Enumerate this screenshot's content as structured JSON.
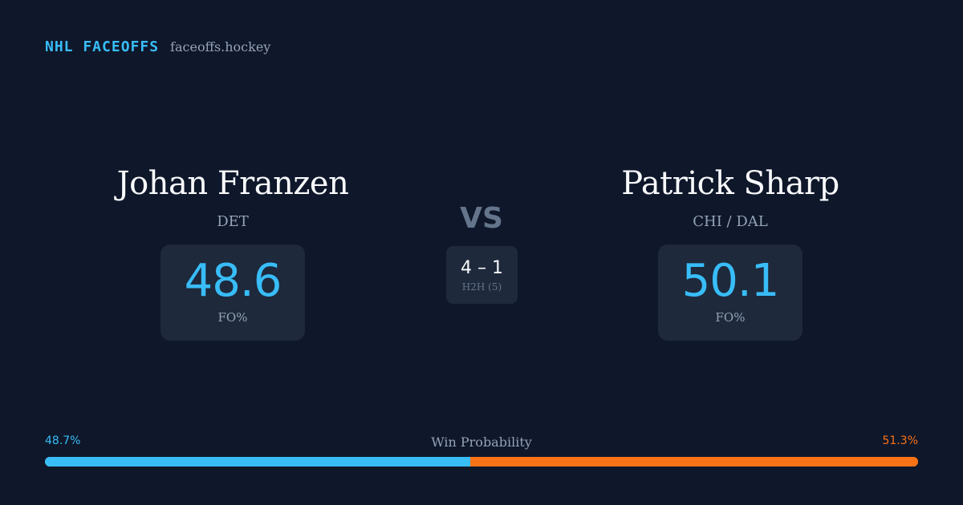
{
  "brand": {
    "name": "NHL FACEOFFS",
    "site": "faceoffs.hockey"
  },
  "player_left": {
    "name": "Johan Franzen",
    "team": "DET",
    "stat_value": "48.6",
    "stat_label": "FO%"
  },
  "player_right": {
    "name": "Patrick Sharp",
    "team": "CHI / DAL",
    "stat_value": "50.1",
    "stat_label": "FO%"
  },
  "versus": {
    "label": "VS",
    "h2h_score": "4 – 1",
    "h2h_label": "H2H (5)"
  },
  "win_probability": {
    "title": "Win Probability",
    "left_label": "48.7%",
    "right_label": "51.3%",
    "left_fraction": 0.487,
    "left_color": "#38bdf8",
    "right_color": "#f97316"
  }
}
